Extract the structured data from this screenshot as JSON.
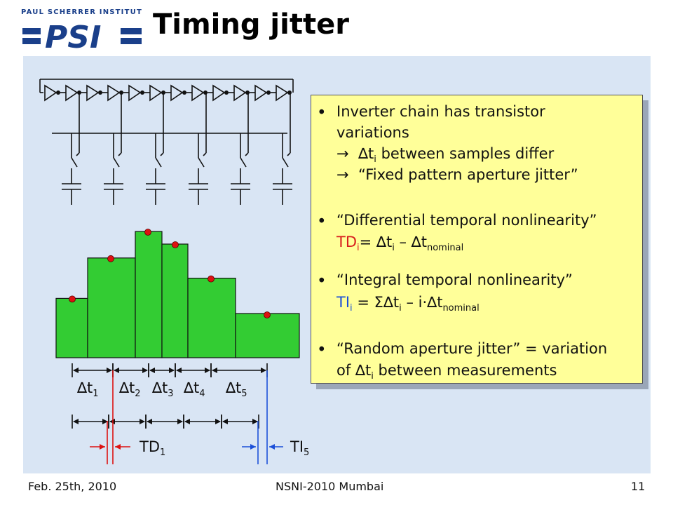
{
  "header": {
    "institute": "PAUL SCHERRER INSTITUT",
    "logo_text": "PSI",
    "title": "Timing jitter"
  },
  "bullets": {
    "b1": {
      "l1": "Inverter chain has transistor",
      "l2": "variations",
      "l3_arrow": "→",
      "l3_delta": "∆t",
      "l3_sub": "i",
      "l3_rest": " between samples differ",
      "l4_arrow": "→",
      "l4_text": "“Fixed pattern aperture jitter”"
    },
    "b2": {
      "l1": "“Differential temporal nonlinearity”",
      "l2_label": "TD",
      "l2_sub": "i",
      "l2_eq": "= ∆t",
      "l2_sub2": "i",
      "l2_rest": " – ∆t",
      "l2_sub3": "nominal"
    },
    "b3": {
      "l1": "“Integral temporal nonlinearity”",
      "l2_label": "TI",
      "l2_sub": "i",
      "l2_eq": " = Σ∆t",
      "l2_sub2": "i",
      "l2_rest": " – i·∆t",
      "l2_sub3": "nominal"
    },
    "b4": {
      "l1": "“Random aperture jitter” = variation",
      "l2_pre": "of ∆t",
      "l2_sub": "i",
      "l2_rest": " between measurements"
    }
  },
  "diagram": {
    "intervals": [
      {
        "label": "∆t",
        "sub": "1"
      },
      {
        "label": "∆t",
        "sub": "2"
      },
      {
        "label": "∆t",
        "sub": "3"
      },
      {
        "label": "∆t",
        "sub": "4"
      },
      {
        "label": "∆t",
        "sub": "5"
      }
    ],
    "td_label": "TD",
    "td_sub": "1",
    "ti_label": "TI",
    "ti_sub": "5",
    "bar_heights": [
      0.47,
      0.79,
      1.0,
      0.9,
      0.63,
      0.35
    ],
    "colors": {
      "bar": "#33cc33",
      "dot": "#dd1111",
      "td": "#dd1111",
      "ti": "#1b4fd8",
      "note": "#ffff99"
    }
  },
  "footer": {
    "date": "Feb. 25th, 2010",
    "event": "NSNI-2010 Mumbai",
    "page": "11"
  }
}
